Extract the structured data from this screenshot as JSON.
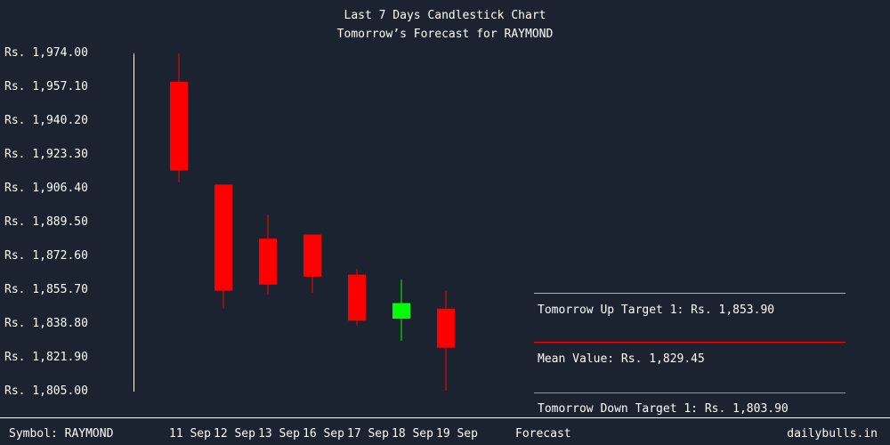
{
  "chart_data": {
    "type": "candlestick",
    "title": "Last 7 Days Candlestick Chart",
    "subtitle": "Tomorrow’s Forecast for RAYMOND",
    "ylim": [
      1805.0,
      1974.0
    ],
    "y_ticks": [
      "Rs. 1,974.00",
      "Rs. 1,957.10",
      "Rs. 1,940.20",
      "Rs. 1,923.30",
      "Rs. 1,906.40",
      "Rs. 1,889.50",
      "Rs. 1,872.60",
      "Rs. 1,855.70",
      "Rs. 1,838.80",
      "Rs. 1,821.90",
      "Rs. 1,805.00"
    ],
    "y_tick_values": [
      1974.0,
      1957.1,
      1940.2,
      1923.3,
      1906.4,
      1889.5,
      1872.6,
      1855.7,
      1838.8,
      1821.9,
      1805.0
    ],
    "categories": [
      "11 Sep",
      "12 Sep",
      "13 Sep",
      "16 Sep",
      "17 Sep",
      "18 Sep",
      "19 Sep"
    ],
    "candles": [
      {
        "open": 1959.4,
        "close": 1915.0,
        "high": 1973.5,
        "low": 1909.2
      },
      {
        "open": 1908.0,
        "close": 1855.0,
        "high": 1908.0,
        "low": 1846.0
      },
      {
        "open": 1881.0,
        "close": 1858.0,
        "high": 1893.0,
        "low": 1853.0
      },
      {
        "open": 1883.0,
        "close": 1862.0,
        "high": 1883.0,
        "low": 1854.0
      },
      {
        "open": 1863.0,
        "close": 1840.0,
        "high": 1866.0,
        "low": 1837.5
      },
      {
        "open": 1841.0,
        "close": 1848.8,
        "high": 1860.5,
        "low": 1830.0
      },
      {
        "open": 1846.0,
        "close": 1826.5,
        "high": 1855.0,
        "low": 1805.0
      }
    ],
    "colors": {
      "up": "#00ff00",
      "down": "#ff0000",
      "axis": "#ffffff",
      "background": "#1b2230"
    }
  },
  "forecast": {
    "up_label": "Tomorrow Up Target 1: Rs. 1,853.90",
    "mean_label": "Mean Value: Rs. 1,829.45",
    "down_label": "Tomorrow Down Target 1: Rs. 1,803.90",
    "up_color": "#ffa500",
    "mean_color": "#ff0000",
    "down_color": "#00ff00"
  },
  "footer": {
    "symbol": "Symbol: RAYMOND",
    "forecast": "Forecast",
    "site": "dailybulls.in"
  }
}
